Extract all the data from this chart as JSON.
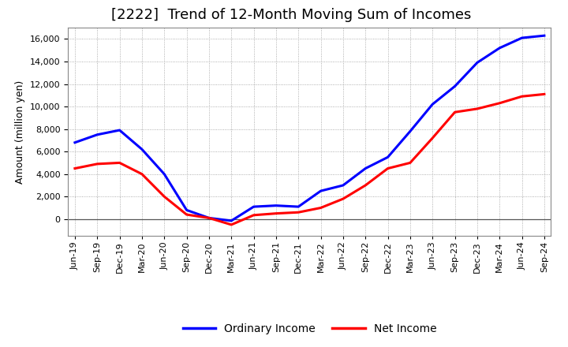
{
  "title": "[2222]  Trend of 12-Month Moving Sum of Incomes",
  "ylabel": "Amount (million yen)",
  "background_color": "#ffffff",
  "plot_background": "#ffffff",
  "grid_color": "#999999",
  "x_labels": [
    "Jun-19",
    "Sep-19",
    "Dec-19",
    "Mar-20",
    "Jun-20",
    "Sep-20",
    "Dec-20",
    "Mar-21",
    "Jun-21",
    "Sep-21",
    "Dec-21",
    "Mar-22",
    "Jun-22",
    "Sep-22",
    "Dec-22",
    "Mar-23",
    "Jun-23",
    "Sep-23",
    "Dec-23",
    "Mar-24",
    "Jun-24",
    "Sep-24"
  ],
  "ordinary_income": [
    6800,
    7500,
    7900,
    6200,
    4000,
    800,
    100,
    -150,
    1100,
    1200,
    1100,
    2500,
    3000,
    4500,
    5500,
    7800,
    10200,
    11800,
    13900,
    15200,
    16100,
    16300
  ],
  "net_income": [
    4500,
    4900,
    5000,
    4000,
    2000,
    400,
    100,
    -500,
    350,
    500,
    600,
    1000,
    1800,
    3000,
    4500,
    5000,
    7200,
    9500,
    9800,
    10300,
    10900,
    11100
  ],
  "ordinary_color": "#0000ff",
  "net_color": "#ff0000",
  "line_width": 2.2,
  "ylim": [
    -1500,
    17000
  ],
  "yticks": [
    0,
    2000,
    4000,
    6000,
    8000,
    10000,
    12000,
    14000,
    16000
  ],
  "legend_labels": [
    "Ordinary Income",
    "Net Income"
  ],
  "title_fontsize": 13,
  "axis_fontsize": 9,
  "tick_fontsize": 8,
  "title_fontweight": "normal"
}
